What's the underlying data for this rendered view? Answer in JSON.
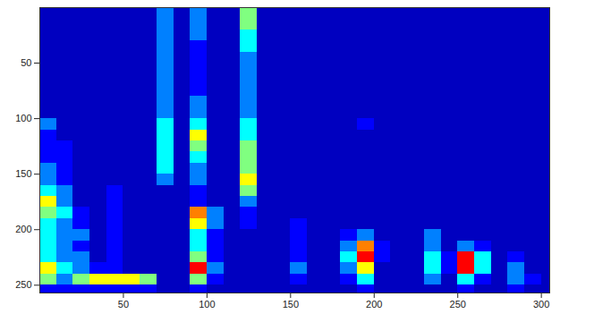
{
  "chart_data": {
    "type": "heatmap",
    "x": [
      5,
      15,
      25,
      35,
      45,
      55,
      65,
      75,
      85,
      95,
      105,
      115,
      125,
      135,
      145,
      155,
      165,
      175,
      185,
      195,
      205,
      215,
      225,
      235,
      245,
      255,
      265,
      275,
      285,
      295,
      305
    ],
    "y": [
      5,
      15,
      25,
      35,
      45,
      55,
      65,
      75,
      85,
      95,
      105,
      115,
      125,
      135,
      145,
      155,
      165,
      175,
      185,
      195,
      205,
      215,
      225,
      235,
      245,
      255
    ],
    "cells": [
      [
        1,
        1,
        1,
        1,
        1,
        1,
        1,
        3,
        1,
        3,
        1,
        1,
        5,
        1,
        1,
        1,
        1,
        1,
        1,
        1,
        1,
        1,
        1,
        1,
        1,
        1,
        1,
        1,
        1,
        1,
        1
      ],
      [
        1,
        1,
        1,
        1,
        1,
        1,
        1,
        3,
        1,
        3,
        1,
        1,
        5,
        1,
        1,
        1,
        1,
        1,
        1,
        1,
        1,
        1,
        1,
        1,
        1,
        1,
        1,
        1,
        1,
        1,
        1
      ],
      [
        1,
        1,
        1,
        1,
        1,
        1,
        1,
        3,
        1,
        3,
        1,
        1,
        4,
        1,
        1,
        1,
        1,
        1,
        1,
        1,
        1,
        1,
        1,
        1,
        1,
        1,
        1,
        1,
        1,
        1,
        1
      ],
      [
        1,
        1,
        1,
        1,
        1,
        1,
        1,
        3,
        1,
        2,
        1,
        1,
        4,
        1,
        1,
        1,
        1,
        1,
        1,
        1,
        1,
        1,
        1,
        1,
        1,
        1,
        1,
        1,
        1,
        1,
        1
      ],
      [
        1,
        1,
        1,
        1,
        1,
        1,
        1,
        3,
        1,
        2,
        1,
        1,
        3,
        1,
        1,
        1,
        1,
        1,
        1,
        1,
        1,
        1,
        1,
        1,
        1,
        1,
        1,
        1,
        1,
        1,
        1
      ],
      [
        1,
        1,
        1,
        1,
        1,
        1,
        1,
        3,
        1,
        2,
        1,
        1,
        3,
        1,
        1,
        1,
        1,
        1,
        1,
        1,
        1,
        1,
        1,
        1,
        1,
        1,
        1,
        1,
        1,
        1,
        1
      ],
      [
        1,
        1,
        1,
        1,
        1,
        1,
        1,
        3,
        1,
        2,
        1,
        1,
        3,
        1,
        1,
        1,
        1,
        1,
        1,
        1,
        1,
        1,
        1,
        1,
        1,
        1,
        1,
        1,
        1,
        1,
        1
      ],
      [
        1,
        1,
        1,
        1,
        1,
        1,
        1,
        3,
        1,
        2,
        1,
        1,
        3,
        1,
        1,
        1,
        1,
        1,
        1,
        1,
        1,
        1,
        1,
        1,
        1,
        1,
        1,
        1,
        1,
        1,
        1
      ],
      [
        1,
        1,
        1,
        1,
        1,
        1,
        1,
        3,
        1,
        3,
        1,
        1,
        3,
        1,
        1,
        1,
        1,
        1,
        1,
        1,
        1,
        1,
        1,
        1,
        1,
        1,
        1,
        1,
        1,
        1,
        1
      ],
      [
        1,
        1,
        1,
        1,
        1,
        1,
        1,
        3,
        1,
        3,
        1,
        1,
        3,
        1,
        1,
        1,
        1,
        1,
        1,
        1,
        1,
        1,
        1,
        1,
        1,
        1,
        1,
        1,
        1,
        1,
        1
      ],
      [
        3,
        1,
        1,
        1,
        1,
        1,
        1,
        4,
        1,
        4,
        1,
        1,
        4,
        1,
        1,
        1,
        1,
        1,
        1,
        2,
        1,
        1,
        1,
        1,
        1,
        1,
        1,
        1,
        1,
        1,
        1
      ],
      [
        2,
        1,
        1,
        1,
        1,
        1,
        1,
        4,
        1,
        6,
        1,
        1,
        4,
        1,
        1,
        1,
        1,
        1,
        1,
        1,
        1,
        1,
        1,
        1,
        1,
        1,
        1,
        1,
        1,
        1,
        1
      ],
      [
        2,
        2,
        1,
        1,
        1,
        1,
        1,
        4,
        1,
        5,
        1,
        1,
        5,
        1,
        1,
        1,
        1,
        1,
        1,
        1,
        1,
        1,
        1,
        1,
        1,
        1,
        1,
        1,
        1,
        1,
        1
      ],
      [
        2,
        2,
        1,
        1,
        1,
        1,
        1,
        4,
        1,
        4,
        1,
        1,
        5,
        1,
        1,
        1,
        1,
        1,
        1,
        1,
        1,
        1,
        1,
        1,
        1,
        1,
        1,
        1,
        1,
        1,
        1
      ],
      [
        3,
        2,
        1,
        1,
        1,
        1,
        1,
        4,
        1,
        3,
        1,
        1,
        5,
        1,
        1,
        1,
        1,
        1,
        1,
        1,
        1,
        1,
        1,
        1,
        1,
        1,
        1,
        1,
        1,
        1,
        1
      ],
      [
        3,
        2,
        1,
        1,
        1,
        1,
        1,
        3,
        1,
        3,
        1,
        1,
        6,
        1,
        1,
        1,
        1,
        1,
        1,
        1,
        1,
        1,
        1,
        1,
        1,
        1,
        1,
        1,
        1,
        1,
        1
      ],
      [
        4,
        3,
        1,
        1,
        2,
        1,
        1,
        1,
        1,
        2,
        1,
        1,
        5,
        1,
        1,
        1,
        1,
        1,
        1,
        1,
        1,
        1,
        1,
        1,
        1,
        1,
        1,
        1,
        1,
        1,
        1
      ],
      [
        6,
        3,
        1,
        1,
        2,
        1,
        1,
        1,
        1,
        2,
        1,
        1,
        3,
        1,
        1,
        1,
        1,
        1,
        1,
        1,
        1,
        1,
        1,
        1,
        1,
        1,
        1,
        1,
        1,
        1,
        1
      ],
      [
        5,
        4,
        2,
        1,
        2,
        1,
        1,
        1,
        1,
        7,
        3,
        1,
        2,
        1,
        1,
        1,
        1,
        1,
        1,
        1,
        1,
        1,
        1,
        1,
        1,
        1,
        1,
        1,
        1,
        1,
        1
      ],
      [
        4,
        3,
        2,
        1,
        2,
        1,
        1,
        1,
        1,
        6,
        3,
        1,
        2,
        1,
        1,
        2,
        1,
        1,
        1,
        1,
        1,
        1,
        1,
        1,
        1,
        1,
        1,
        1,
        1,
        1,
        1
      ],
      [
        4,
        3,
        3,
        1,
        2,
        1,
        1,
        1,
        1,
        4,
        2,
        1,
        1,
        1,
        1,
        2,
        1,
        1,
        2,
        3,
        1,
        1,
        1,
        3,
        1,
        1,
        1,
        1,
        1,
        1,
        1
      ],
      [
        4,
        3,
        2,
        1,
        2,
        1,
        1,
        1,
        1,
        4,
        2,
        1,
        1,
        1,
        1,
        2,
        1,
        1,
        3,
        7,
        2,
        1,
        1,
        3,
        1,
        3,
        2,
        1,
        1,
        1,
        1
      ],
      [
        4,
        3,
        3,
        1,
        2,
        1,
        1,
        1,
        1,
        5,
        2,
        1,
        1,
        1,
        1,
        2,
        1,
        1,
        4,
        8,
        2,
        1,
        1,
        4,
        2,
        8,
        4,
        1,
        2,
        1,
        1
      ],
      [
        6,
        4,
        3,
        2,
        2,
        1,
        1,
        1,
        1,
        8,
        3,
        1,
        1,
        1,
        1,
        3,
        1,
        1,
        3,
        6,
        1,
        1,
        1,
        4,
        2,
        8,
        4,
        1,
        3,
        1,
        1
      ],
      [
        5,
        3,
        5,
        6,
        6,
        6,
        5,
        1,
        1,
        5,
        2,
        1,
        1,
        1,
        1,
        2,
        1,
        1,
        2,
        4,
        1,
        1,
        1,
        3,
        1,
        4,
        2,
        1,
        3,
        2,
        1
      ],
      [
        2,
        2,
        2,
        2,
        2,
        2,
        2,
        1,
        1,
        2,
        1,
        1,
        1,
        1,
        1,
        1,
        1,
        1,
        1,
        2,
        1,
        1,
        1,
        1,
        1,
        2,
        1,
        1,
        2,
        1,
        1
      ]
    ],
    "zlim": [
      0,
      10
    ],
    "xlim": [
      0,
      305
    ],
    "ylim": [
      0,
      257
    ],
    "xticks": [
      50,
      100,
      150,
      200,
      250,
      300
    ],
    "yticks": [
      50,
      100,
      150,
      200,
      250
    ]
  }
}
